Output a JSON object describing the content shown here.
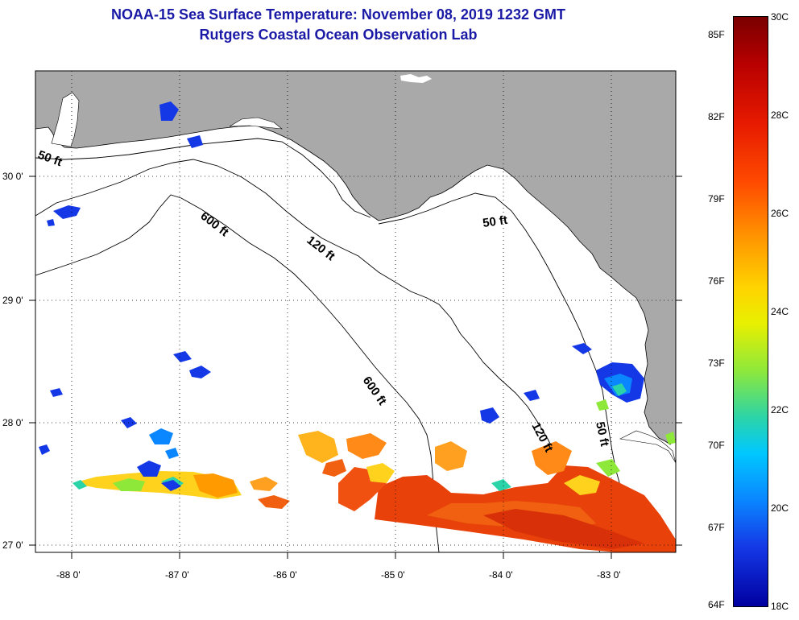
{
  "title": {
    "line1": "NOAA-15 Sea Surface Temperature:  November 08, 2019 1232 GMT",
    "line2": "Rutgers Coastal Ocean Observation Lab"
  },
  "map": {
    "lat_labels": [
      "30 0'",
      "29 0'",
      "28 0'",
      "27 0'"
    ],
    "lon_labels": [
      "-88 0'",
      "-87 0'",
      "-86 0'",
      "-85 0'",
      "-84 0'",
      "-83 0'"
    ],
    "depth_labels": [
      "50 ft",
      "600 ft",
      "120 ft",
      "50 ft",
      "600 ft",
      "120 ft",
      "50 ft"
    ],
    "land_color": "#a9a9a9",
    "ocean_color": "#ffffff"
  },
  "colorbar": {
    "fahrenheit": [
      "85F",
      "82F",
      "79F",
      "76F",
      "73F",
      "70F",
      "67F",
      "64F"
    ],
    "celsius": [
      "30C",
      "28C",
      "26C",
      "24C",
      "22C",
      "20C",
      "18C"
    ],
    "colors": [
      "#7a0000",
      "#e61a00",
      "#ff9a00",
      "#e8f000",
      "#2bd4a8",
      "#0a86ff",
      "#0000a0"
    ]
  }
}
